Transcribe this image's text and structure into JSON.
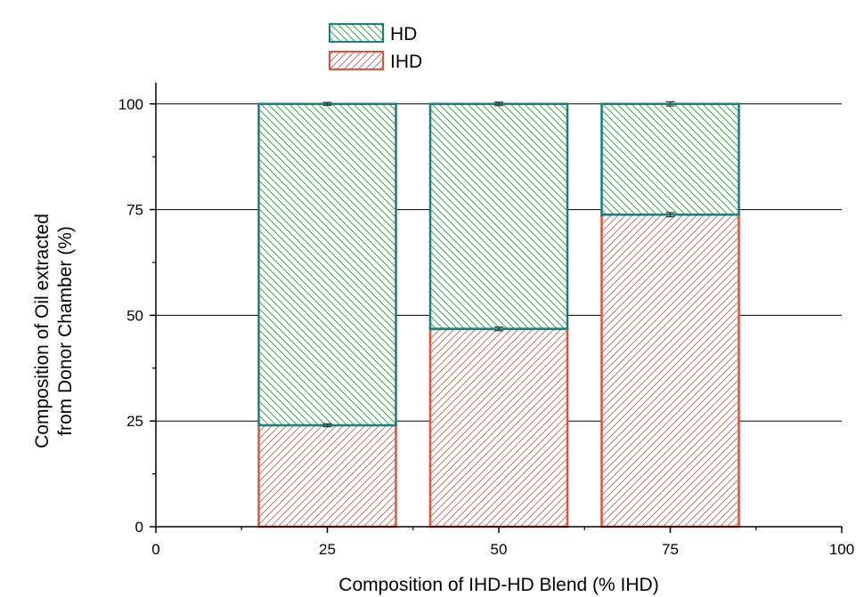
{
  "chart_data": {
    "type": "bar",
    "stacked": true,
    "categories": [
      25,
      50,
      75
    ],
    "series": [
      {
        "name": "IHD",
        "values": [
          24,
          46.8,
          73.8
        ],
        "errors": [
          0.35,
          0.45,
          0.5
        ],
        "fill": "#e2533a",
        "hatch": "forward",
        "edge": "#e2533a"
      },
      {
        "name": "HD",
        "values": [
          76,
          53.2,
          26.2
        ],
        "errors": [
          0.35,
          0.4,
          0.5
        ],
        "fill": "#2f8f3a",
        "hatch": "backward",
        "edge": "#1a7f7a"
      }
    ],
    "x_range": [
      0,
      100
    ],
    "y_range": [
      0,
      105
    ],
    "x_ticks": [
      0,
      25,
      50,
      75,
      100
    ],
    "y_ticks": [
      0,
      25,
      50,
      75,
      100
    ],
    "bar_width": 20,
    "xlabel": "Composition of IHD-HD Blend (% IHD)",
    "ylabel_lines": [
      "Composition of Oil extracted",
      "from Donor Chamber (%)"
    ],
    "grid_y": true,
    "legend_position": "top-center",
    "legend_order": [
      "HD",
      "IHD"
    ]
  }
}
